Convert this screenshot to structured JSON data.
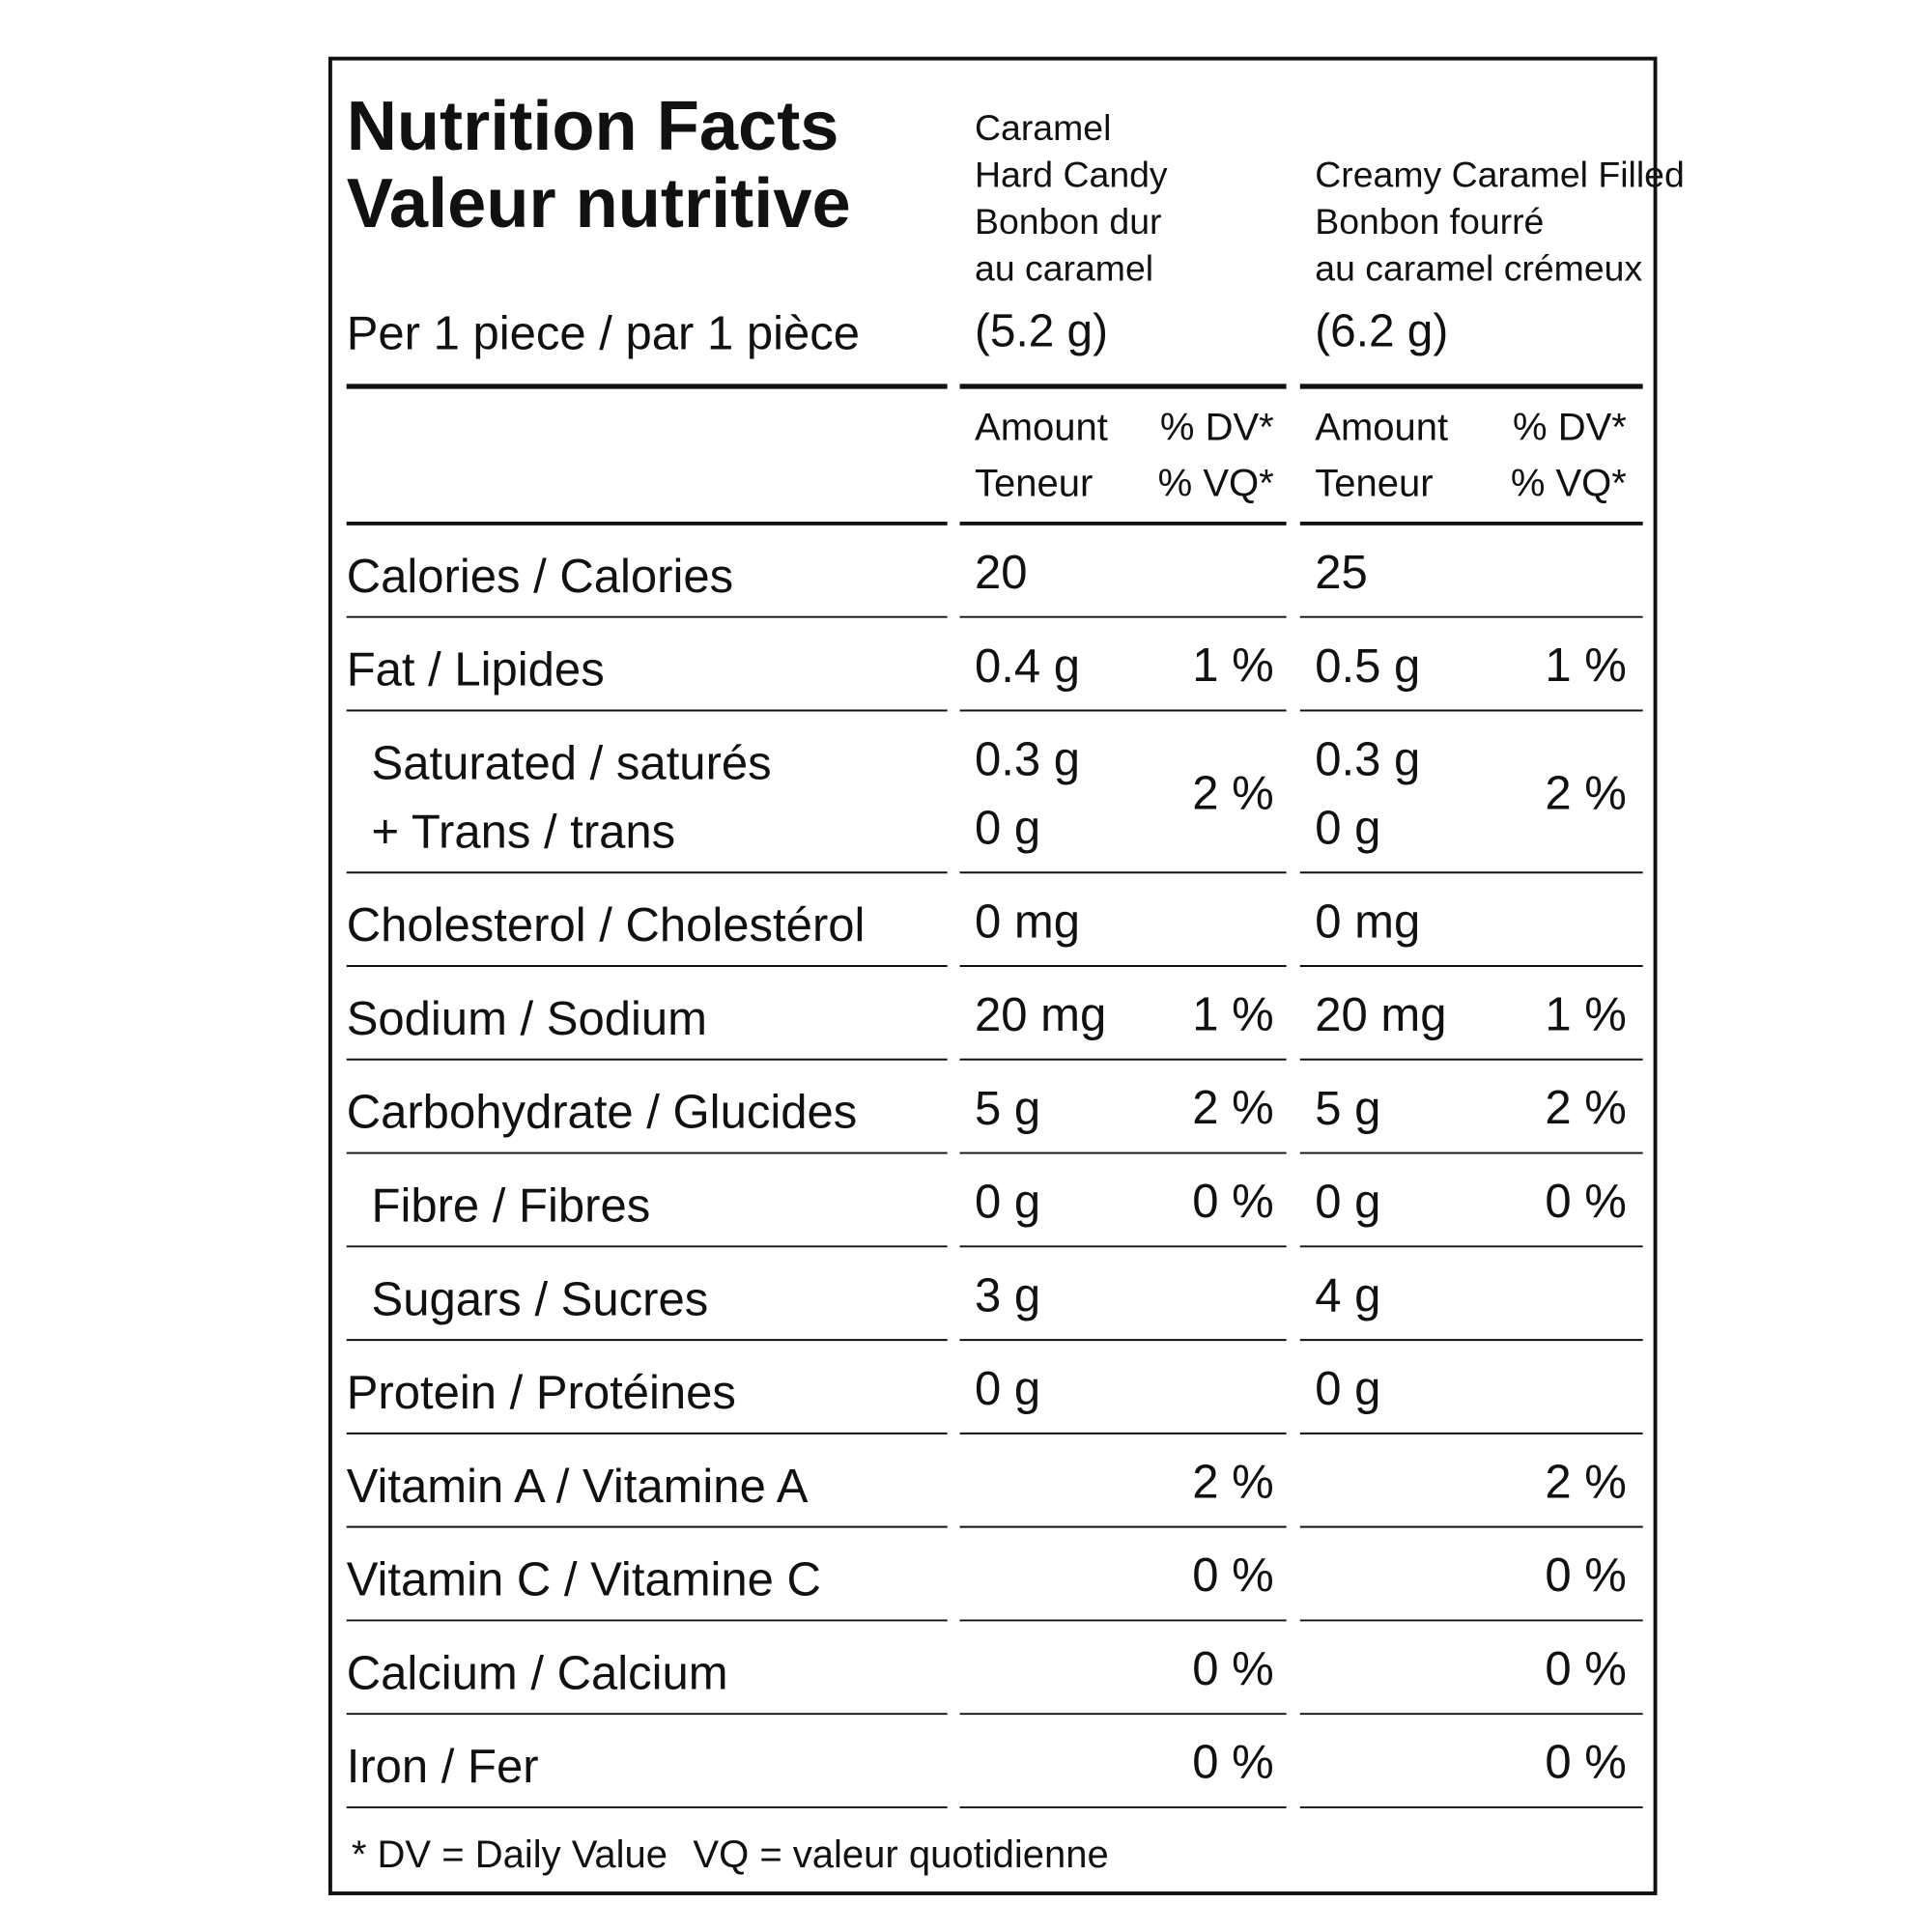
{
  "header": {
    "title_en": "Nutrition Facts",
    "title_fr": "Valeur nutritive",
    "serving": "Per 1 piece / par 1 pièce"
  },
  "products": [
    {
      "name_lines": [
        "Caramel",
        "Hard Candy",
        "Bonbon dur",
        "au caramel"
      ],
      "size": "(5.2 g)"
    },
    {
      "name_lines": [
        "Creamy Caramel Filled",
        "Bonbon fourré",
        "au caramel crémeux"
      ],
      "size": "(6.2 g)"
    }
  ],
  "column_headers": {
    "amount": [
      "Amount",
      "Teneur"
    ],
    "dv": [
      "% DV*",
      "% VQ*"
    ]
  },
  "rows": [
    {
      "label": [
        "Calories / Calories"
      ],
      "indent": false,
      "cells": [
        {
          "amount": [
            "20"
          ]
        },
        {
          "amount": [
            "25"
          ]
        }
      ]
    },
    {
      "label": [
        "Fat / Lipides"
      ],
      "indent": false,
      "cells": [
        {
          "amount": [
            "0.4 g"
          ],
          "dv": "1 %"
        },
        {
          "amount": [
            "0.5 g"
          ],
          "dv": "1 %"
        }
      ]
    },
    {
      "label": [
        "Saturated / saturés",
        "+ Trans / trans"
      ],
      "indent": true,
      "cells": [
        {
          "amount": [
            "0.3 g",
            "0 g"
          ],
          "dv": "2 %"
        },
        {
          "amount": [
            "0.3 g",
            "0 g"
          ],
          "dv": "2 %"
        }
      ]
    },
    {
      "label": [
        "Cholesterol / Cholestérol"
      ],
      "indent": false,
      "cells": [
        {
          "amount": [
            "0 mg"
          ]
        },
        {
          "amount": [
            "0 mg"
          ]
        }
      ]
    },
    {
      "label": [
        "Sodium / Sodium"
      ],
      "indent": false,
      "cells": [
        {
          "amount": [
            "20 mg"
          ],
          "dv": "1 %"
        },
        {
          "amount": [
            "20 mg"
          ],
          "dv": "1 %"
        }
      ]
    },
    {
      "label": [
        "Carbohydrate / Glucides"
      ],
      "indent": false,
      "cells": [
        {
          "amount": [
            "5 g"
          ],
          "dv": "2 %"
        },
        {
          "amount": [
            "5 g"
          ],
          "dv": "2 %"
        }
      ]
    },
    {
      "label": [
        "Fibre / Fibres"
      ],
      "indent": true,
      "cells": [
        {
          "amount": [
            "0 g"
          ],
          "dv": "0 %"
        },
        {
          "amount": [
            "0 g"
          ],
          "dv": "0 %"
        }
      ]
    },
    {
      "label": [
        "Sugars / Sucres"
      ],
      "indent": true,
      "cells": [
        {
          "amount": [
            "3 g"
          ]
        },
        {
          "amount": [
            "4 g"
          ]
        }
      ]
    },
    {
      "label": [
        "Protein / Protéines"
      ],
      "indent": false,
      "cells": [
        {
          "amount": [
            "0 g"
          ]
        },
        {
          "amount": [
            "0 g"
          ]
        }
      ]
    },
    {
      "label": [
        "Vitamin A / Vitamine A"
      ],
      "indent": false,
      "cells": [
        {
          "dv": "2 %"
        },
        {
          "dv": "2 %"
        }
      ]
    },
    {
      "label": [
        "Vitamin C / Vitamine C"
      ],
      "indent": false,
      "cells": [
        {
          "dv": "0 %"
        },
        {
          "dv": "0 %"
        }
      ]
    },
    {
      "label": [
        "Calcium / Calcium"
      ],
      "indent": false,
      "cells": [
        {
          "dv": "0 %"
        },
        {
          "dv": "0 %"
        }
      ]
    },
    {
      "label": [
        "Iron / Fer"
      ],
      "indent": false,
      "cells": [
        {
          "dv": "0 %"
        },
        {
          "dv": "0 %"
        }
      ]
    }
  ],
  "footnote": [
    "* DV = Daily Value",
    "VQ = valeur quotidienne"
  ]
}
